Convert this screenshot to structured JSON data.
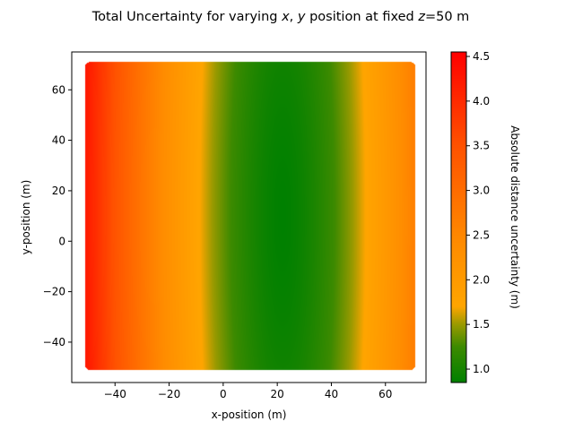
{
  "chart_data": {
    "type": "heatmap",
    "title_parts": {
      "prefix": "Total Uncertainty for varying ",
      "var_x": "x",
      "sep": ", ",
      "var_y": "y",
      "middle": " position at fixed ",
      "var_z": "z",
      "suffix": "=50 m"
    },
    "xlabel": "x-position (m)",
    "ylabel": "y-position (m)",
    "colorbar_label": "Absolute distance uncertainty (m)",
    "xlim": [
      -56,
      75
    ],
    "ylim": [
      -56,
      75
    ],
    "xticks": [
      -40,
      -20,
      0,
      20,
      40,
      60
    ],
    "yticks": [
      -40,
      -20,
      0,
      20,
      40,
      60
    ],
    "xtick_labels": [
      "−40",
      "−20",
      "0",
      "20",
      "40",
      "60"
    ],
    "ytick_labels": [
      "−40",
      "−20",
      "0",
      "20",
      "40",
      "60"
    ],
    "data_extent": {
      "x": [
        -51,
        71
      ],
      "y": [
        -51,
        71
      ]
    },
    "min_location": {
      "x": 22,
      "y": 10
    },
    "scale_x": 35,
    "scale_y": 260,
    "colorbar": {
      "range": [
        0.85,
        4.55
      ],
      "ticks": [
        1.0,
        1.5,
        2.0,
        2.5,
        3.0,
        3.5,
        4.0,
        4.5
      ],
      "tick_labels": [
        "1.0",
        "1.5",
        "2.0",
        "2.5",
        "3.0",
        "3.5",
        "4.0",
        "4.5"
      ],
      "colormap": [
        {
          "value": 0.85,
          "color": "#008000"
        },
        {
          "value": 1.25,
          "color": "#3d8a00"
        },
        {
          "value": 1.5,
          "color": "#9a9a00"
        },
        {
          "value": 1.7,
          "color": "#ffa500"
        },
        {
          "value": 2.4,
          "color": "#ff8c00"
        },
        {
          "value": 3.5,
          "color": "#ff5200"
        },
        {
          "value": 4.55,
          "color": "#ff0000"
        }
      ]
    }
  }
}
